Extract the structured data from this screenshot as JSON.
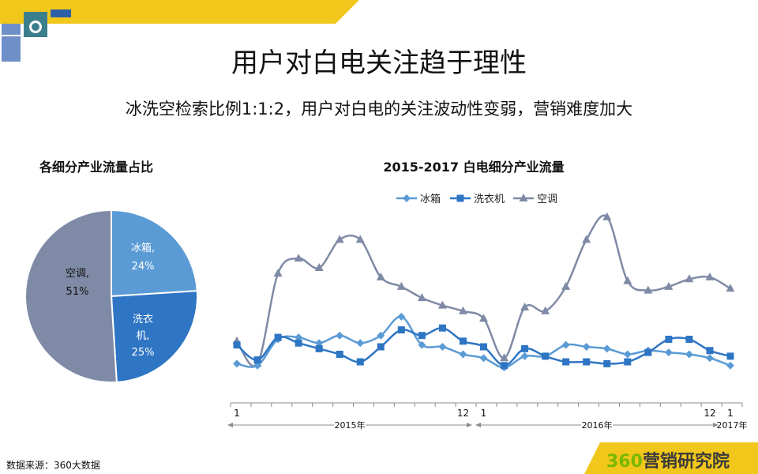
{
  "header": {
    "title": "用户对白电关注趋于理性",
    "subtitle": "冰洗空检索比例1:1:2，用户对白电的关注波动性变弱，营销难度加大"
  },
  "footer": {
    "source": "数据来源：360大数据",
    "logo_number": "360",
    "logo_text": "营销研究院"
  },
  "colors": {
    "accent_yellow": "#F2C71B",
    "fridge": "#5B9BD5",
    "washer": "#2E75C4",
    "aircon": "#7F8AA6"
  },
  "chart_data": [
    {
      "type": "pie",
      "title": "各细分产业流量占比",
      "slices": [
        {
          "name": "冰箱",
          "value": 24,
          "label": "冰箱,",
          "pct_label": "24%",
          "color": "#5B9BD5"
        },
        {
          "name": "洗衣机",
          "value": 25,
          "label": "洗衣机,",
          "pct_label": "25%",
          "color": "#2E75C4"
        },
        {
          "name": "空调",
          "value": 51,
          "label": "空调,",
          "pct_label": "51%",
          "color": "#7F8AA6"
        }
      ]
    },
    {
      "type": "line",
      "title": "2015-2017 白电细分产业流量",
      "legend_position": "top",
      "tick_labels": [
        {
          "index": 0,
          "text": "1"
        },
        {
          "index": 11,
          "text": "12"
        },
        {
          "index": 12,
          "text": "1"
        },
        {
          "index": 23,
          "text": "12"
        },
        {
          "index": 24,
          "text": "1"
        }
      ],
      "year_labels": [
        {
          "text": "2015年",
          "start": 0,
          "end": 11
        },
        {
          "text": "2016年",
          "start": 12,
          "end": 23
        },
        {
          "text": "2017年",
          "start": 24,
          "end": 24
        }
      ],
      "ylim": [
        0,
        100
      ],
      "series": [
        {
          "name": "冰箱",
          "color": "#5B9BD5",
          "marker": "diamond",
          "values": [
            20,
            19,
            33,
            34,
            31,
            35,
            31,
            35,
            45,
            30,
            29,
            25,
            23,
            18,
            24,
            24,
            30,
            29,
            28,
            25,
            27,
            26,
            25,
            23,
            19
          ]
        },
        {
          "name": "洗衣机",
          "color": "#2E75C4",
          "marker": "square",
          "values": [
            30,
            22,
            34,
            31,
            28,
            25,
            21,
            29,
            38,
            35,
            39,
            32,
            29,
            19,
            28,
            24,
            21,
            21,
            20,
            21,
            26,
            33,
            33,
            27,
            24
          ]
        },
        {
          "name": "空调",
          "color": "#7F8AA6",
          "marker": "triangle",
          "values": [
            32,
            20,
            68,
            76,
            71,
            86,
            86,
            66,
            61,
            55,
            51,
            48,
            44,
            23,
            50,
            48,
            61,
            86,
            98,
            64,
            59,
            61,
            65,
            66,
            60
          ]
        }
      ]
    }
  ]
}
